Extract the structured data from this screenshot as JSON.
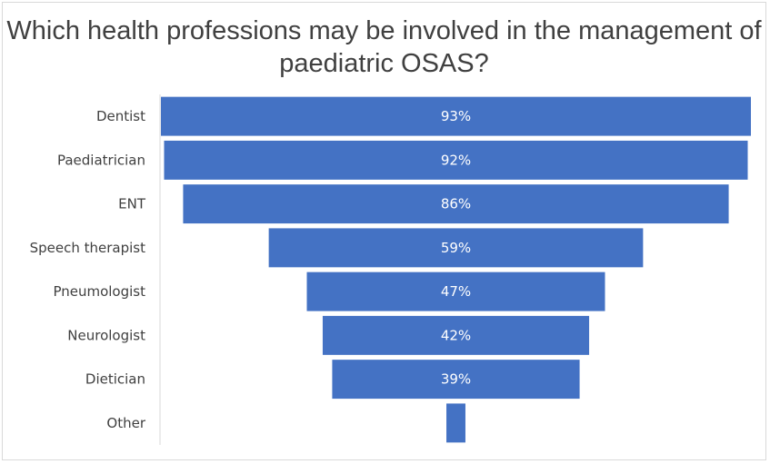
{
  "chart_data": {
    "type": "bar",
    "orientation": "horizontal",
    "layout": "funnel",
    "title": "Which health professions may be involved in the management of paediatric OSAS?",
    "categories": [
      "Dentist",
      "Paediatrician",
      "ENT",
      "Speech therapist",
      "Pneumologist",
      "Neurologist",
      "Dietician",
      "Other"
    ],
    "values": [
      93,
      92,
      86,
      59,
      47,
      42,
      39,
      3
    ],
    "value_labels": [
      "93%",
      "92%",
      "86%",
      "59%",
      "47%",
      "42%",
      "39%",
      ""
    ],
    "value_unit": "%",
    "xlim": [
      0,
      93
    ],
    "grid": false,
    "legend": "none",
    "colors": {
      "bar": "#4472c4",
      "axis_line": "#d9d9d9",
      "text": "#404040",
      "value_text": "#ffffff"
    }
  }
}
